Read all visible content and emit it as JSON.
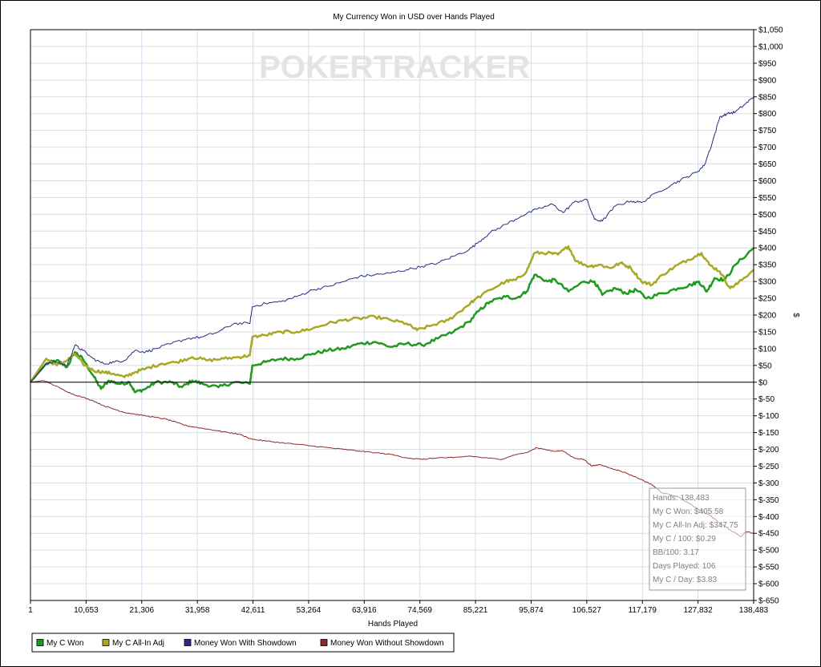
{
  "chart_data": {
    "type": "line",
    "title": "My Currency Won in USD over Hands Played",
    "xlabel": "Hands Played",
    "ylabel": "$",
    "xlim": [
      1,
      138483
    ],
    "ylim": [
      -650,
      1050
    ],
    "y_step": 50,
    "x_ticks": [
      1,
      10653,
      21306,
      31958,
      42611,
      53264,
      63916,
      74569,
      85221,
      95874,
      106527,
      117179,
      127832,
      138483
    ],
    "x_tick_labels": [
      "1",
      "10,653",
      "21,306",
      "31,958",
      "42,611",
      "53,264",
      "63,916",
      "74,569",
      "85,221",
      "95,874",
      "106,527",
      "117,179",
      "127,832",
      "138,483"
    ],
    "grid": true,
    "legend_position": "bottom-left",
    "watermark": "POKERTRACKER",
    "series": [
      {
        "name": "My C Won",
        "color": "#1e9a1e",
        "points": [
          [
            1,
            0
          ],
          [
            3000,
            55
          ],
          [
            5000,
            65
          ],
          [
            7000,
            45
          ],
          [
            8500,
            90
          ],
          [
            10000,
            70
          ],
          [
            12000,
            20
          ],
          [
            13500,
            -20
          ],
          [
            15000,
            5
          ],
          [
            17000,
            -5
          ],
          [
            19000,
            0
          ],
          [
            20000,
            -30
          ],
          [
            22000,
            -20
          ],
          [
            24000,
            0
          ],
          [
            27000,
            0
          ],
          [
            29000,
            -15
          ],
          [
            31000,
            5
          ],
          [
            33000,
            -5
          ],
          [
            36000,
            -15
          ],
          [
            39000,
            0
          ],
          [
            42000,
            -5
          ],
          [
            42500,
            50
          ],
          [
            45000,
            60
          ],
          [
            48000,
            70
          ],
          [
            51000,
            70
          ],
          [
            54000,
            85
          ],
          [
            57000,
            95
          ],
          [
            60000,
            100
          ],
          [
            63000,
            115
          ],
          [
            66000,
            120
          ],
          [
            69000,
            105
          ],
          [
            72000,
            115
          ],
          [
            75000,
            110
          ],
          [
            78000,
            130
          ],
          [
            81000,
            150
          ],
          [
            84000,
            180
          ],
          [
            86000,
            215
          ],
          [
            88000,
            240
          ],
          [
            91000,
            255
          ],
          [
            93000,
            250
          ],
          [
            95000,
            270
          ],
          [
            96500,
            320
          ],
          [
            99000,
            300
          ],
          [
            100500,
            305
          ],
          [
            103000,
            270
          ],
          [
            106000,
            300
          ],
          [
            108000,
            300
          ],
          [
            109500,
            260
          ],
          [
            112000,
            280
          ],
          [
            114000,
            265
          ],
          [
            116000,
            275
          ],
          [
            118000,
            250
          ],
          [
            121000,
            265
          ],
          [
            124000,
            280
          ],
          [
            126500,
            290
          ],
          [
            128000,
            300
          ],
          [
            129500,
            270
          ],
          [
            131000,
            310
          ],
          [
            133000,
            305
          ],
          [
            135000,
            350
          ],
          [
            138483,
            400
          ]
        ]
      },
      {
        "name": "My C All-In Adj",
        "color": "#a8a824",
        "points": [
          [
            1,
            0
          ],
          [
            3000,
            70
          ],
          [
            5000,
            50
          ],
          [
            7000,
            65
          ],
          [
            8500,
            85
          ],
          [
            10000,
            55
          ],
          [
            12000,
            35
          ],
          [
            14000,
            30
          ],
          [
            16000,
            25
          ],
          [
            18000,
            15
          ],
          [
            20000,
            30
          ],
          [
            22000,
            40
          ],
          [
            25000,
            55
          ],
          [
            28000,
            60
          ],
          [
            31000,
            75
          ],
          [
            34000,
            65
          ],
          [
            37000,
            70
          ],
          [
            40000,
            75
          ],
          [
            42000,
            80
          ],
          [
            42500,
            135
          ],
          [
            45000,
            140
          ],
          [
            48000,
            150
          ],
          [
            51000,
            150
          ],
          [
            54000,
            160
          ],
          [
            57000,
            175
          ],
          [
            60000,
            185
          ],
          [
            63000,
            190
          ],
          [
            66000,
            195
          ],
          [
            69000,
            185
          ],
          [
            72000,
            175
          ],
          [
            74000,
            155
          ],
          [
            77000,
            170
          ],
          [
            80000,
            185
          ],
          [
            83000,
            220
          ],
          [
            85000,
            245
          ],
          [
            88000,
            275
          ],
          [
            91000,
            300
          ],
          [
            93000,
            305
          ],
          [
            95000,
            330
          ],
          [
            96500,
            385
          ],
          [
            99000,
            385
          ],
          [
            101000,
            380
          ],
          [
            103000,
            405
          ],
          [
            104500,
            360
          ],
          [
            107000,
            345
          ],
          [
            109000,
            350
          ],
          [
            111000,
            340
          ],
          [
            113000,
            355
          ],
          [
            115000,
            340
          ],
          [
            117000,
            300
          ],
          [
            119000,
            290
          ],
          [
            121000,
            320
          ],
          [
            124000,
            350
          ],
          [
            126000,
            365
          ],
          [
            128500,
            385
          ],
          [
            130000,
            350
          ],
          [
            132000,
            330
          ],
          [
            134000,
            280
          ],
          [
            135500,
            295
          ],
          [
            138483,
            335
          ]
        ]
      },
      {
        "name": "Money Won With Showdown",
        "color": "#2a2a82",
        "points": [
          [
            1,
            0
          ],
          [
            3000,
            55
          ],
          [
            5000,
            60
          ],
          [
            7000,
            50
          ],
          [
            8500,
            110
          ],
          [
            10000,
            95
          ],
          [
            12000,
            70
          ],
          [
            14000,
            55
          ],
          [
            16000,
            60
          ],
          [
            18000,
            65
          ],
          [
            20000,
            95
          ],
          [
            22000,
            90
          ],
          [
            24000,
            100
          ],
          [
            27000,
            115
          ],
          [
            30000,
            130
          ],
          [
            33000,
            135
          ],
          [
            36000,
            150
          ],
          [
            39000,
            175
          ],
          [
            42000,
            175
          ],
          [
            42500,
            225
          ],
          [
            45000,
            235
          ],
          [
            48000,
            240
          ],
          [
            51000,
            255
          ],
          [
            54000,
            275
          ],
          [
            57000,
            285
          ],
          [
            60000,
            300
          ],
          [
            63000,
            315
          ],
          [
            66000,
            320
          ],
          [
            69000,
            325
          ],
          [
            72000,
            335
          ],
          [
            75000,
            345
          ],
          [
            78000,
            355
          ],
          [
            81000,
            375
          ],
          [
            84000,
            395
          ],
          [
            86000,
            420
          ],
          [
            88000,
            445
          ],
          [
            91000,
            470
          ],
          [
            94000,
            495
          ],
          [
            97000,
            515
          ],
          [
            100000,
            530
          ],
          [
            102000,
            505
          ],
          [
            104000,
            535
          ],
          [
            106500,
            545
          ],
          [
            108000,
            485
          ],
          [
            109500,
            480
          ],
          [
            112000,
            525
          ],
          [
            115000,
            540
          ],
          [
            117000,
            535
          ],
          [
            120000,
            565
          ],
          [
            123000,
            590
          ],
          [
            125500,
            610
          ],
          [
            127500,
            625
          ],
          [
            129000,
            645
          ],
          [
            130500,
            710
          ],
          [
            132000,
            790
          ],
          [
            133500,
            800
          ],
          [
            135000,
            805
          ],
          [
            137000,
            830
          ],
          [
            138483,
            850
          ]
        ]
      },
      {
        "name": "Money Won Without Showdown",
        "color": "#8b2a2a",
        "points": [
          [
            1,
            0
          ],
          [
            2500,
            5
          ],
          [
            4000,
            -5
          ],
          [
            6000,
            -20
          ],
          [
            8000,
            -35
          ],
          [
            10000,
            -45
          ],
          [
            12000,
            -55
          ],
          [
            14000,
            -70
          ],
          [
            16000,
            -80
          ],
          [
            18000,
            -90
          ],
          [
            20000,
            -95
          ],
          [
            22000,
            -100
          ],
          [
            24000,
            -105
          ],
          [
            26000,
            -110
          ],
          [
            28000,
            -120
          ],
          [
            30000,
            -130
          ],
          [
            32000,
            -135
          ],
          [
            34000,
            -140
          ],
          [
            36000,
            -145
          ],
          [
            38000,
            -150
          ],
          [
            40000,
            -155
          ],
          [
            42500,
            -170
          ],
          [
            45000,
            -175
          ],
          [
            48000,
            -180
          ],
          [
            51000,
            -185
          ],
          [
            54000,
            -190
          ],
          [
            57000,
            -195
          ],
          [
            60000,
            -200
          ],
          [
            63000,
            -205
          ],
          [
            66000,
            -210
          ],
          [
            69000,
            -215
          ],
          [
            72000,
            -225
          ],
          [
            75000,
            -230
          ],
          [
            78000,
            -225
          ],
          [
            81000,
            -225
          ],
          [
            84000,
            -220
          ],
          [
            87000,
            -225
          ],
          [
            90000,
            -230
          ],
          [
            93000,
            -215
          ],
          [
            95000,
            -210
          ],
          [
            97000,
            -195
          ],
          [
            100000,
            -205
          ],
          [
            102000,
            -205
          ],
          [
            104000,
            -225
          ],
          [
            106000,
            -230
          ],
          [
            107500,
            -250
          ],
          [
            109000,
            -245
          ],
          [
            112000,
            -260
          ],
          [
            114000,
            -270
          ],
          [
            117000,
            -290
          ],
          [
            119000,
            -305
          ],
          [
            121000,
            -330
          ],
          [
            124000,
            -340
          ],
          [
            126000,
            -360
          ],
          [
            128000,
            -380
          ],
          [
            130000,
            -395
          ],
          [
            132000,
            -420
          ],
          [
            134000,
            -440
          ],
          [
            136000,
            -460
          ],
          [
            137000,
            -445
          ],
          [
            138483,
            -450
          ]
        ]
      }
    ],
    "info_box": {
      "lines": [
        "Hands: 138,483",
        "My C Won: $405.58",
        "My C All-In Adj: $347.75",
        "My C / 100: $0.29",
        "BB/100: 3.17",
        "Days Played: 106",
        "My C / Day: $3.83"
      ]
    }
  }
}
